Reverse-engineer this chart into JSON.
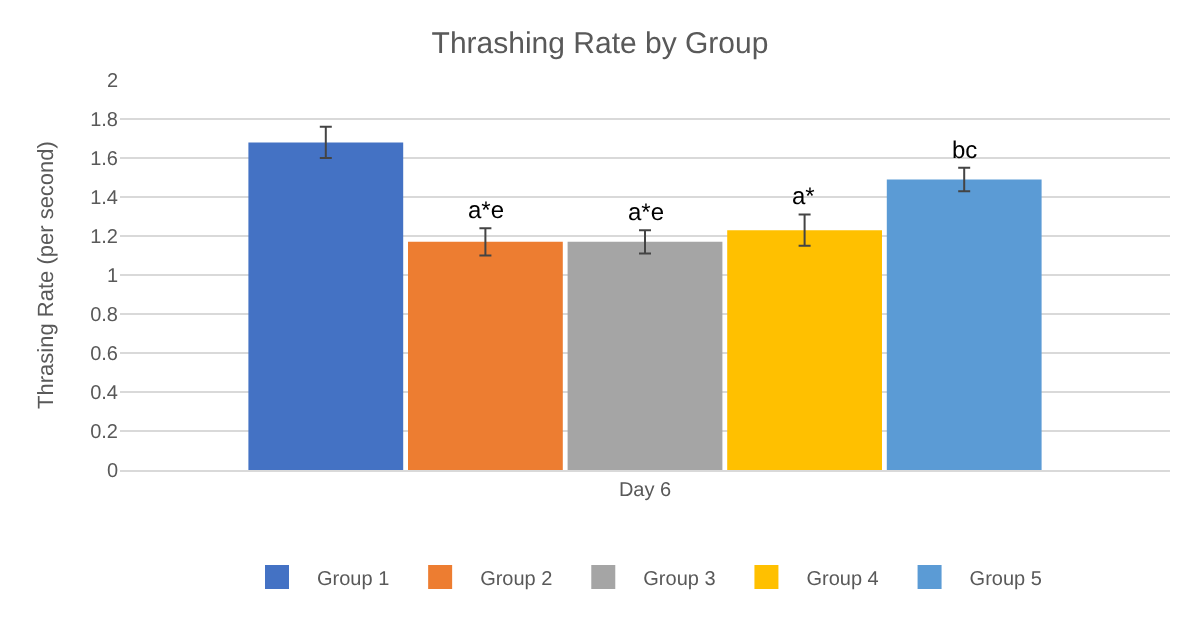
{
  "chart_data": {
    "type": "bar",
    "title": "Thrashing Rate by Group",
    "ylabel": "Thrasing Rate (per second)",
    "categories": [
      "Day 6"
    ],
    "series": [
      {
        "name": "Group 1",
        "color": "#4472c4",
        "values": [
          1.68
        ],
        "errors": [
          0.08
        ]
      },
      {
        "name": "Group 2",
        "color": "#ed7d31",
        "values": [
          1.17
        ],
        "errors": [
          0.07
        ],
        "value_labels": [
          "a*e"
        ]
      },
      {
        "name": "Group 3",
        "color": "#a5a5a5",
        "values": [
          1.17
        ],
        "errors": [
          0.06
        ],
        "value_labels": [
          "a*e"
        ]
      },
      {
        "name": "Group 4",
        "color": "#ffc000",
        "values": [
          1.23
        ],
        "errors": [
          0.08
        ],
        "value_labels": [
          "a*"
        ]
      },
      {
        "name": "Group 5",
        "color": "#5b9bd5",
        "values": [
          1.49
        ],
        "errors": [
          0.06
        ],
        "value_labels": [
          "bc"
        ]
      }
    ],
    "ylim": [
      0,
      2
    ],
    "yticks": [
      0,
      0.2,
      0.4,
      0.6,
      0.8,
      1,
      1.2,
      1.4,
      1.6,
      1.8,
      2
    ],
    "grid": "y",
    "legend": "bottom"
  }
}
